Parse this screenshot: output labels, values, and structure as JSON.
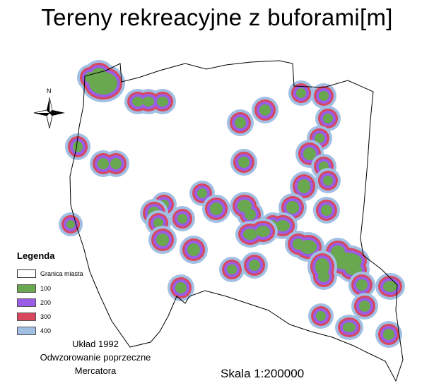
{
  "title": "Tereny rekreacyjne z buforami[m]",
  "north_label": "N",
  "legend": {
    "title": "Legenda",
    "items": [
      {
        "label": "Granica miasta",
        "color": "#ffffff"
      },
      {
        "label": "100",
        "color": "#6aa84f"
      },
      {
        "label": "200",
        "color": "#9b5de5"
      },
      {
        "label": "300",
        "color": "#d9475e"
      },
      {
        "label": "400",
        "color": "#a0bfe3"
      }
    ]
  },
  "projection": {
    "line1": "Układ 1992",
    "line2": "Odwzorowanie poprzeczne",
    "line3": "Mercatora"
  },
  "scale": "Skala 1:200000",
  "colors": {
    "buffer_400": "#a0bfe3",
    "buffer_300": "#d9475e",
    "buffer_200": "#9b5de5",
    "area_100": "#6aa84f",
    "boundary": "#000000"
  }
}
